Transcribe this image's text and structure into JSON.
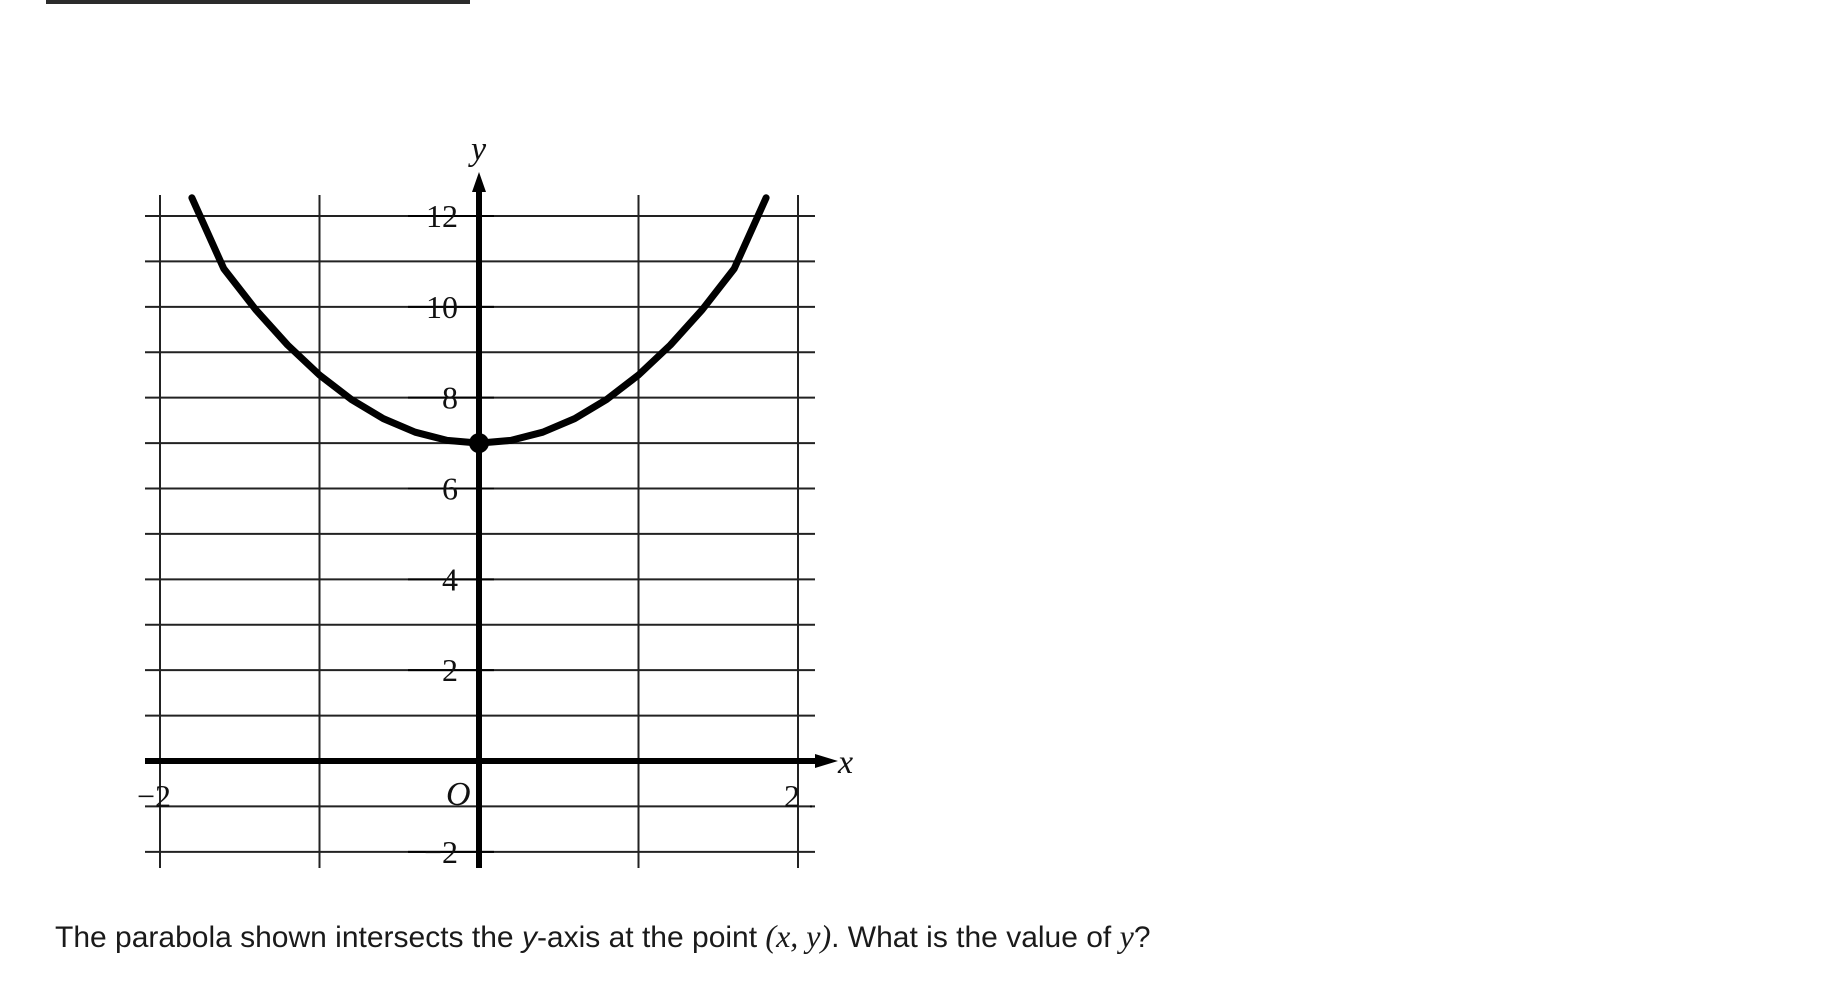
{
  "question": {
    "before": "The parabola shown intersects the ",
    "axis_var": "y",
    "middle": "-axis at the point ",
    "point": "(x, y)",
    "after": ". What is the value of ",
    "ask_var": "y",
    "end": "?"
  },
  "chart_data": {
    "type": "line",
    "title": "",
    "xlabel": "x",
    "ylabel": "y",
    "origin_label": "O",
    "xlim": [
      -2,
      2
    ],
    "ylim": [
      -2,
      12
    ],
    "x_ticks": [
      -2,
      -1,
      0,
      1,
      2
    ],
    "y_ticks": [
      -2,
      -1,
      0,
      1,
      2,
      3,
      4,
      5,
      6,
      7,
      8,
      9,
      10,
      11,
      12
    ],
    "x_tick_labels": [
      {
        "value": -2,
        "text": "−2"
      },
      {
        "value": 2,
        "text": "2"
      }
    ],
    "y_tick_labels": [
      {
        "value": 12,
        "text": "12"
      },
      {
        "value": 10,
        "text": "10"
      },
      {
        "value": 8,
        "text": "8"
      },
      {
        "value": 6,
        "text": "6"
      },
      {
        "value": 4,
        "text": "4"
      },
      {
        "value": 2,
        "text": "2"
      },
      {
        "value": -2,
        "text": "−2"
      }
    ],
    "grid": true,
    "series": [
      {
        "x": [
          -1.8,
          -1.6,
          -1.4,
          -1.2,
          -1.0,
          -0.8,
          -0.6,
          -0.4,
          -0.2,
          0.0,
          0.2,
          0.4,
          0.6,
          0.8,
          1.0,
          1.2,
          1.4,
          1.6,
          1.8
        ],
        "y": [
          12.4,
          10.84,
          9.94,
          9.16,
          8.5,
          7.96,
          7.54,
          7.24,
          7.06,
          7.0,
          7.06,
          7.24,
          7.54,
          7.96,
          8.5,
          9.16,
          9.94,
          10.84,
          12.4
        ]
      }
    ],
    "marked_point": {
      "x": 0,
      "y": 7
    }
  }
}
